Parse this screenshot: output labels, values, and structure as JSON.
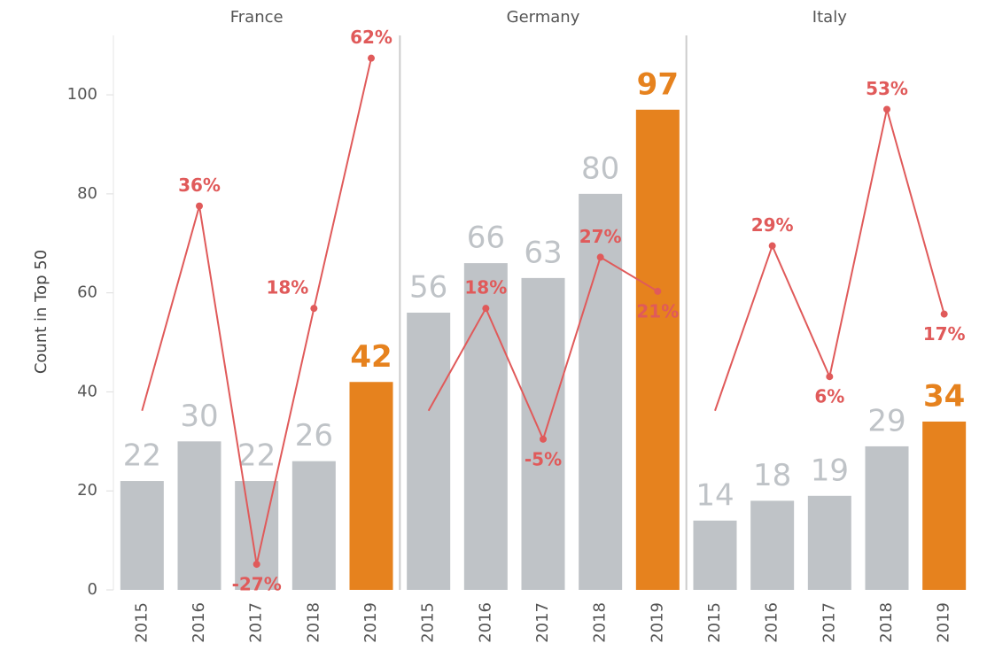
{
  "chart_data": {
    "type": "bar",
    "ylabel": "Count in Top 50",
    "ylim": [
      0,
      112
    ],
    "yticks": [
      0,
      20,
      40,
      60,
      80,
      100
    ],
    "y2lim": [
      -31.5,
      66
    ],
    "categories": [
      "2015",
      "2016",
      "2017",
      "2018",
      "2019"
    ],
    "bar_colors": [
      "#bfc3c7",
      "#bfc3c7",
      "#bfc3c7",
      "#bfc3c7",
      "#e6821e"
    ],
    "line_color": "#e05a5a",
    "panels": [
      {
        "title": "France",
        "values": [
          22,
          30,
          22,
          26,
          42
        ],
        "growth": [
          0,
          36,
          -27,
          18,
          62
        ],
        "growth_labels": [
          null,
          "36%",
          "-27%",
          "18%",
          "62%"
        ]
      },
      {
        "title": "Germany",
        "values": [
          56,
          66,
          63,
          80,
          97
        ],
        "growth": [
          0,
          18,
          -5,
          27,
          21
        ],
        "growth_labels": [
          null,
          "18%",
          "-5%",
          "27%",
          "21%"
        ]
      },
      {
        "title": "Italy",
        "values": [
          14,
          18,
          19,
          29,
          34
        ],
        "growth": [
          0,
          29,
          6,
          53,
          17
        ],
        "growth_labels": [
          null,
          "29%",
          "6%",
          "53%",
          "17%"
        ]
      }
    ]
  }
}
